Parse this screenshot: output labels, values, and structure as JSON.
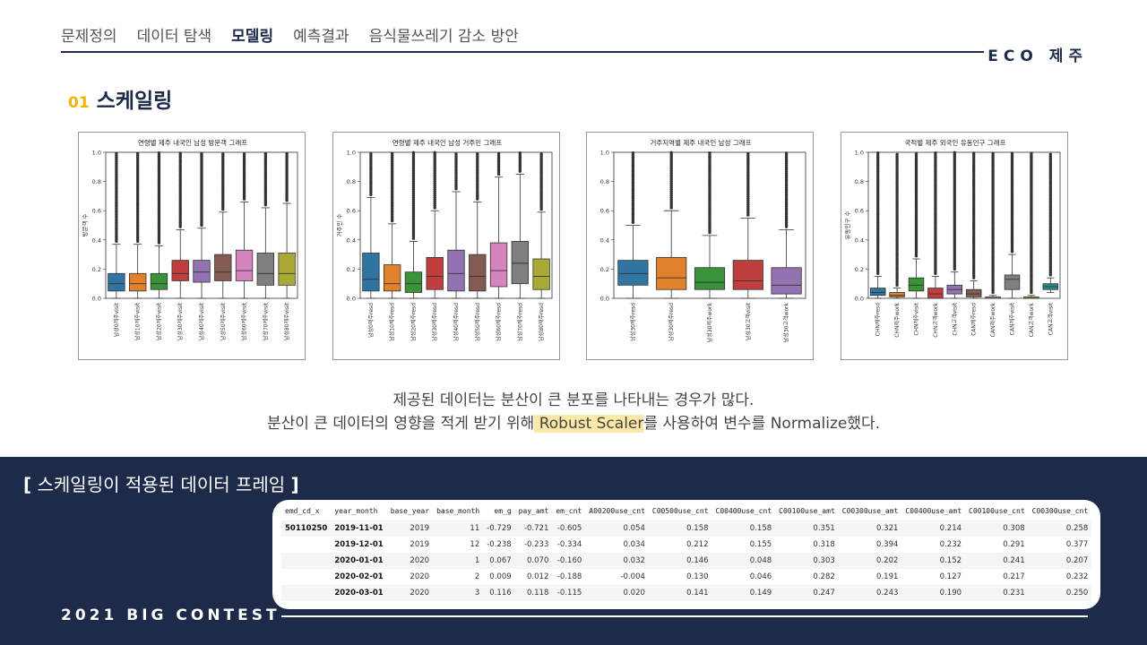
{
  "nav": {
    "items": [
      "문제정의",
      "데이터 탐색",
      "모델링",
      "예측결과",
      "음식물쓰레기 감소 방안"
    ],
    "active_index": 2,
    "brand": "ECO 제주"
  },
  "section": {
    "number": "01",
    "title": "스케일링"
  },
  "colors": {
    "navy": "#1e2a4a",
    "accent": "#f0b400",
    "highlight": "#fde8a8"
  },
  "chart_data": [
    {
      "type": "boxplot",
      "title": "연령별 제주 내국인 남성 방문객 그래프",
      "ylabel": "방문객 수",
      "ylim": [
        0,
        1.0
      ],
      "yticks": [
        "0.0",
        "0.2",
        "0.4",
        "0.6",
        "0.8",
        "1.0"
      ],
      "categories": [
        "남성0제주visit",
        "남성10제주visit",
        "남성20제주visit",
        "남성30제주visit",
        "남성40제주visit",
        "남성50제주visit",
        "남성60제주visit",
        "남성70제주visit",
        "남성80제주visit"
      ],
      "boxes": [
        {
          "q1": 0.05,
          "median": 0.1,
          "q3": 0.17,
          "whisker_low": 0.0,
          "whisker_high": 0.37
        },
        {
          "q1": 0.05,
          "median": 0.1,
          "q3": 0.17,
          "whisker_low": 0.0,
          "whisker_high": 0.37
        },
        {
          "q1": 0.06,
          "median": 0.1,
          "q3": 0.17,
          "whisker_low": 0.0,
          "whisker_high": 0.36
        },
        {
          "q1": 0.12,
          "median": 0.17,
          "q3": 0.26,
          "whisker_low": 0.0,
          "whisker_high": 0.47
        },
        {
          "q1": 0.11,
          "median": 0.18,
          "q3": 0.26,
          "whisker_low": 0.0,
          "whisker_high": 0.48
        },
        {
          "q1": 0.12,
          "median": 0.18,
          "q3": 0.3,
          "whisker_low": 0.0,
          "whisker_high": 0.59
        },
        {
          "q1": 0.12,
          "median": 0.19,
          "q3": 0.33,
          "whisker_low": 0.0,
          "whisker_high": 0.66
        },
        {
          "q1": 0.09,
          "median": 0.17,
          "q3": 0.31,
          "whisker_low": 0.0,
          "whisker_high": 0.62
        },
        {
          "q1": 0.09,
          "median": 0.17,
          "q3": 0.31,
          "whisker_low": 0.0,
          "whisker_high": 0.65
        }
      ],
      "colors": [
        "#3274a1",
        "#e1812c",
        "#3a923a",
        "#c03d3e",
        "#9372b2",
        "#845b53",
        "#d684bd",
        "#7f7f7f",
        "#a9aa35"
      ]
    },
    {
      "type": "boxplot",
      "title": "연령별 제주 내국인 남성 거주민 그래프",
      "ylabel": "거주민 수",
      "ylim": [
        0,
        1.0
      ],
      "yticks": [
        "0.0",
        "0.2",
        "0.4",
        "0.6",
        "0.8",
        "1.0"
      ],
      "categories": [
        "남성0제주resd",
        "남성10제주resd",
        "남성20제주resd",
        "남성30제주resd",
        "남성40제주resd",
        "남성50제주resd",
        "남성60제주resd",
        "남성70제주resd",
        "남성80제주resd"
      ],
      "boxes": [
        {
          "q1": 0.05,
          "median": 0.13,
          "q3": 0.31,
          "whisker_low": 0.0,
          "whisker_high": 0.69
        },
        {
          "q1": 0.05,
          "median": 0.1,
          "q3": 0.23,
          "whisker_low": 0.0,
          "whisker_high": 0.51
        },
        {
          "q1": 0.04,
          "median": 0.1,
          "q3": 0.18,
          "whisker_low": 0.0,
          "whisker_high": 0.39
        },
        {
          "q1": 0.06,
          "median": 0.15,
          "q3": 0.28,
          "whisker_low": 0.0,
          "whisker_high": 0.6
        },
        {
          "q1": 0.05,
          "median": 0.17,
          "q3": 0.33,
          "whisker_low": 0.0,
          "whisker_high": 0.73
        },
        {
          "q1": 0.05,
          "median": 0.15,
          "q3": 0.3,
          "whisker_low": 0.0,
          "whisker_high": 0.66
        },
        {
          "q1": 0.08,
          "median": 0.19,
          "q3": 0.38,
          "whisker_low": 0.0,
          "whisker_high": 0.83
        },
        {
          "q1": 0.1,
          "median": 0.24,
          "q3": 0.39,
          "whisker_low": 0.0,
          "whisker_high": 0.85
        },
        {
          "q1": 0.06,
          "median": 0.15,
          "q3": 0.27,
          "whisker_low": 0.0,
          "whisker_high": 0.59
        }
      ],
      "colors": [
        "#3274a1",
        "#e1812c",
        "#3a923a",
        "#c03d3e",
        "#9372b2",
        "#845b53",
        "#d684bd",
        "#7f7f7f",
        "#a9aa35"
      ]
    },
    {
      "type": "boxplot",
      "title": "거주지역별 제주 내국인 남성 그래프",
      "ylabel": "",
      "ylim": [
        0,
        1.0
      ],
      "yticks": [
        "0.0",
        "0.2",
        "0.4",
        "0.6",
        "0.8",
        "1.0"
      ],
      "categories": [
        "남성30제주resd",
        "남성30제주resd",
        "남성30제주work",
        "남성30고객visit",
        "남성30고객work"
      ],
      "boxes": [
        {
          "q1": 0.09,
          "median": 0.17,
          "q3": 0.26,
          "whisker_low": 0.0,
          "whisker_high": 0.5
        },
        {
          "q1": 0.06,
          "median": 0.14,
          "q3": 0.28,
          "whisker_low": 0.0,
          "whisker_high": 0.6
        },
        {
          "q1": 0.06,
          "median": 0.11,
          "q3": 0.21,
          "whisker_low": 0.0,
          "whisker_high": 0.43
        },
        {
          "q1": 0.06,
          "median": 0.12,
          "q3": 0.26,
          "whisker_low": 0.0,
          "whisker_high": 0.55
        },
        {
          "q1": 0.03,
          "median": 0.09,
          "q3": 0.21,
          "whisker_low": 0.0,
          "whisker_high": 0.47
        }
      ],
      "colors": [
        "#3274a1",
        "#e1812c",
        "#3a923a",
        "#c03d3e",
        "#9372b2"
      ]
    },
    {
      "type": "boxplot",
      "title": "국적별 제주 외국인 유동인구 그래프",
      "ylabel": "유동인구 수",
      "ylim": [
        0,
        1.0
      ],
      "yticks": [
        "0.0",
        "0.2",
        "0.4",
        "0.6",
        "0.8",
        "1.0"
      ],
      "categories": [
        "CHN제주resd",
        "CHN제주work",
        "CHN제주visit",
        "CHN고객work",
        "CHN고객visit",
        "CAN제주resd",
        "CAN제주work",
        "CAN제주visit",
        "CAN고객work",
        "CAN고객visit"
      ],
      "boxes": [
        {
          "q1": 0.02,
          "median": 0.04,
          "q3": 0.07,
          "whisker_low": 0.0,
          "whisker_high": 0.15
        },
        {
          "q1": 0.01,
          "median": 0.02,
          "q3": 0.04,
          "whisker_low": 0.0,
          "whisker_high": 0.07
        },
        {
          "q1": 0.05,
          "median": 0.09,
          "q3": 0.14,
          "whisker_low": 0.0,
          "whisker_high": 0.27
        },
        {
          "q1": 0.0,
          "median": 0.03,
          "q3": 0.07,
          "whisker_low": 0.0,
          "whisker_high": 0.15
        },
        {
          "q1": 0.03,
          "median": 0.06,
          "q3": 0.09,
          "whisker_low": 0.0,
          "whisker_high": 0.18
        },
        {
          "q1": 0.01,
          "median": 0.03,
          "q3": 0.06,
          "whisker_low": 0.0,
          "whisker_high": 0.12
        },
        {
          "q1": 0.0,
          "median": 0.0,
          "q3": 0.01,
          "whisker_low": 0.0,
          "whisker_high": 0.02
        },
        {
          "q1": 0.06,
          "median": 0.13,
          "q3": 0.16,
          "whisker_low": 0.0,
          "whisker_high": 0.3
        },
        {
          "q1": 0.0,
          "median": 0.0,
          "q3": 0.01,
          "whisker_low": 0.0,
          "whisker_high": 0.02
        },
        {
          "q1": 0.06,
          "median": 0.08,
          "q3": 0.1,
          "whisker_low": 0.04,
          "whisker_high": 0.14
        }
      ],
      "colors": [
        "#3274a1",
        "#e1812c",
        "#3a923a",
        "#c03d3e",
        "#9372b2",
        "#845b53",
        "#d684bd",
        "#7f7f7f",
        "#a9aa35",
        "#2a8a8a"
      ]
    }
  ],
  "description": {
    "line1": "제공된 데이터는 분산이 큰 분포를 나타내는 경우가 많다.",
    "line2_prefix": "분산이 큰 데이터의 영향을 적게 받기 위해",
    "line2_highlight": " Robust Scaler",
    "line2_suffix": "를 사용하여 변수를 Normalize했다."
  },
  "frame": {
    "title_open": "[",
    "title": "스케일링이 적용된 데이터 프레임",
    "title_close": "]"
  },
  "table": {
    "headers": [
      "emd_cd_x",
      "year_month",
      "base_year",
      "base_month",
      "em_g",
      "pay_amt",
      "em_cnt",
      "A00200use_cnt",
      "C00500use_cnt",
      "C00400use_cnt",
      "C00100use_amt",
      "C00300use_amt",
      "C00400use_amt",
      "C00100use_cnt",
      "C00300use_cnt"
    ],
    "rows": [
      [
        "50110250",
        "2019-11-01",
        "2019",
        "11",
        "-0.729",
        "-0.721",
        "-0.605",
        "0.054",
        "0.158",
        "0.158",
        "0.351",
        "0.321",
        "0.214",
        "0.308",
        "0.258"
      ],
      [
        "",
        "2019-12-01",
        "2019",
        "12",
        "-0.238",
        "-0.233",
        "-0.334",
        "0.034",
        "0.212",
        "0.155",
        "0.318",
        "0.394",
        "0.232",
        "0.291",
        "0.377"
      ],
      [
        "",
        "2020-01-01",
        "2020",
        "1",
        "0.067",
        "0.070",
        "-0.160",
        "0.032",
        "0.146",
        "0.048",
        "0.303",
        "0.202",
        "0.152",
        "0.241",
        "0.207"
      ],
      [
        "",
        "2020-02-01",
        "2020",
        "2",
        "0.009",
        "0.012",
        "-0.188",
        "-0.004",
        "0.130",
        "0.046",
        "0.282",
        "0.191",
        "0.127",
        "0.217",
        "0.232"
      ],
      [
        "",
        "2020-03-01",
        "2020",
        "3",
        "0.116",
        "0.118",
        "-0.115",
        "0.020",
        "0.141",
        "0.149",
        "0.247",
        "0.243",
        "0.190",
        "0.231",
        "0.250"
      ]
    ]
  },
  "footer": {
    "label": "2021 BIG CONTEST"
  }
}
